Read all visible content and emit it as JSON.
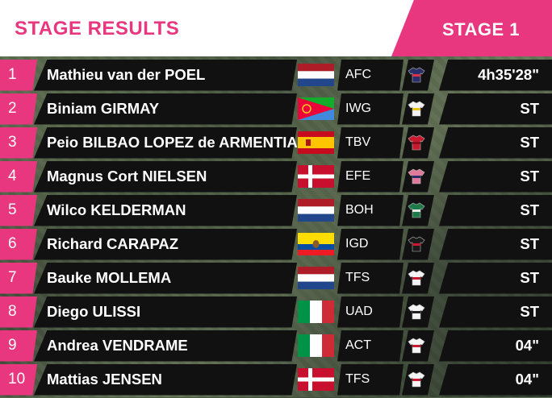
{
  "header": {
    "title": "STAGE RESULTS",
    "stage": "STAGE 1"
  },
  "colors": {
    "accent": "#e8377e",
    "row_bg": "#111111",
    "header_bg": "#ffffff"
  },
  "results": [
    {
      "pos": "1",
      "name": "Mathieu van der POEL",
      "flag": "netherlands",
      "team": "AFC",
      "jersey": "navy-jersey-icon",
      "time": "4h35'28\""
    },
    {
      "pos": "2",
      "name": "Biniam GIRMAY",
      "flag": "eritrea",
      "team": "IWG",
      "jersey": "white-yellow-jersey-icon",
      "time": "ST"
    },
    {
      "pos": "3",
      "name": "Peio BILBAO LOPEZ de ARMENTIA",
      "flag": "spain",
      "team": "TBV",
      "jersey": "red-jersey-icon",
      "time": "ST"
    },
    {
      "pos": "4",
      "name": "Magnus Cort NIELSEN",
      "flag": "denmark",
      "team": "EFE",
      "jersey": "pink-navy-jersey-icon",
      "time": "ST"
    },
    {
      "pos": "5",
      "name": "Wilco KELDERMAN",
      "flag": "netherlands",
      "team": "BOH",
      "jersey": "green-jersey-icon",
      "time": "ST"
    },
    {
      "pos": "6",
      "name": "Richard CARAPAZ",
      "flag": "ecuador",
      "team": "IGD",
      "jersey": "black-red-jersey-icon",
      "time": "ST"
    },
    {
      "pos": "7",
      "name": "Bauke MOLLEMA",
      "flag": "netherlands",
      "team": "TFS",
      "jersey": "white-red-jersey-icon",
      "time": "ST"
    },
    {
      "pos": "8",
      "name": "Diego ULISSI",
      "flag": "italy",
      "team": "UAD",
      "jersey": "white-black-jersey-icon",
      "time": "ST"
    },
    {
      "pos": "9",
      "name": "Andrea VENDRAME",
      "flag": "italy",
      "team": "ACT",
      "jersey": "white-red-jersey-icon",
      "time": "04\""
    },
    {
      "pos": "10",
      "name": "Mattias JENSEN",
      "flag": "denmark",
      "team": "TFS",
      "jersey": "white-red-jersey-icon",
      "time": "04\""
    }
  ]
}
